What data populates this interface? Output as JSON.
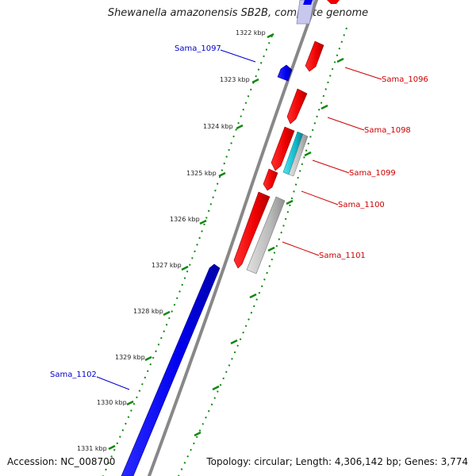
{
  "title": "Shewanella amazonensis SB2B, complete genome",
  "footer": {
    "accession_label": "Accession:",
    "accession": "NC_008700",
    "topology_text": "Topology: circular; Length: 4,306,142 bp; Genes: 3,774"
  },
  "ruler": {
    "ticks": [
      "1322 kbp",
      "1323 kbp",
      "1324 kbp",
      "1325 kbp",
      "1326 kbp",
      "1327 kbp",
      "1328 kbp",
      "1329 kbp",
      "1330 kbp",
      "1331 kbp"
    ]
  },
  "genes": [
    {
      "name": "Sama_1096",
      "strand": "reverse",
      "color": "#cc0000"
    },
    {
      "name": "Sama_1097",
      "strand": "forward",
      "color": "#0000cc"
    },
    {
      "name": "Sama_1098",
      "strand": "reverse",
      "color": "#cc0000"
    },
    {
      "name": "Sama_1099",
      "strand": "reverse",
      "color": "#cc0000"
    },
    {
      "name": "Sama_1100",
      "strand": "reverse",
      "color": "#cc0000"
    },
    {
      "name": "Sama_1101",
      "strand": "reverse",
      "color": "#cc0000"
    },
    {
      "name": "Sama_1102",
      "strand": "forward",
      "color": "#0000cc"
    }
  ],
  "colors": {
    "forward_gene": "#0000ee",
    "reverse_gene": "#ee0000",
    "rna_feature": "#11bbcc",
    "pseudo_feature": "#bbbbbb",
    "backbone": "#888888",
    "tick_marks": "#118811"
  }
}
